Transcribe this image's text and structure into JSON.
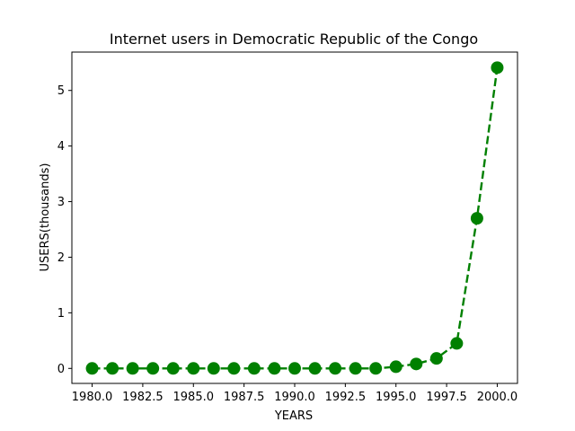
{
  "chart_data": {
    "type": "line",
    "title": "Internet users in Democratic Republic of the Congo",
    "xlabel": "YEARS",
    "ylabel": "USERS(thousands)",
    "xlim": [
      1979,
      2001
    ],
    "ylim": [
      -0.27,
      5.69
    ],
    "xticks": [
      1980.0,
      1982.5,
      1985.0,
      1987.5,
      1990.0,
      1992.5,
      1995.0,
      1997.5,
      2000.0
    ],
    "xtick_labels": [
      "1980.0",
      "1982.5",
      "1985.0",
      "1987.5",
      "1990.0",
      "1992.5",
      "1995.0",
      "1997.5",
      "2000.0"
    ],
    "yticks": [
      0,
      1,
      2,
      3,
      4,
      5
    ],
    "ytick_labels": [
      "0",
      "1",
      "2",
      "3",
      "4",
      "5"
    ],
    "grid": false,
    "legend": "none",
    "series": [
      {
        "color": "#008000",
        "line_style": "dashed",
        "marker": "circle",
        "x": [
          1980,
          1981,
          1982,
          1983,
          1984,
          1985,
          1986,
          1987,
          1988,
          1989,
          1990,
          1991,
          1992,
          1993,
          1994,
          1995,
          1996,
          1997,
          1998,
          1999,
          2000
        ],
        "y": [
          0,
          0,
          0,
          0,
          0,
          0,
          0,
          0,
          0,
          0,
          0,
          0,
          0,
          0,
          0,
          0.03,
          0.08,
          0.18,
          0.45,
          2.7,
          5.41
        ]
      }
    ]
  }
}
